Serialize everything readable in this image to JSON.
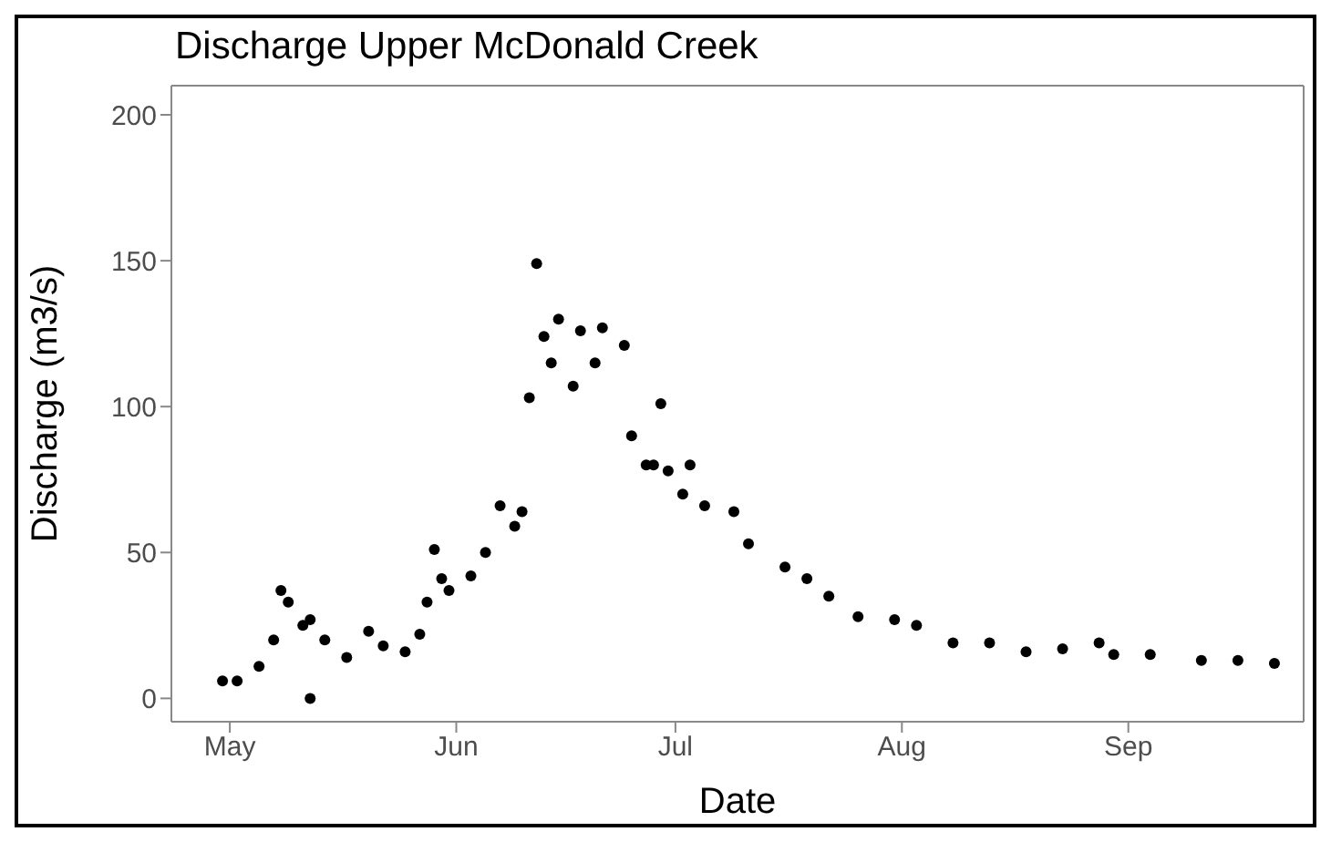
{
  "chart_data": {
    "type": "scatter",
    "title": "Discharge Upper McDonald Creek",
    "xlabel": "Date",
    "ylabel": "Discharge (m3/s)",
    "x": [
      "--04-30",
      "--05-02",
      "--05-05",
      "--05-07",
      "--05-08",
      "--05-09",
      "--05-11",
      "--05-12",
      "--05-12",
      "--05-14",
      "--05-17",
      "--05-20",
      "--05-22",
      "--05-25",
      "--05-27",
      "--05-28",
      "--05-29",
      "--05-30",
      "--05-31",
      "--06-03",
      "--06-05",
      "--06-07",
      "--06-09",
      "--06-10",
      "--06-11",
      "--06-12",
      "--06-13",
      "--06-14",
      "--06-15",
      "--06-17",
      "--06-18",
      "--06-20",
      "--06-21",
      "--06-24",
      "--06-25",
      "--06-27",
      "--06-28",
      "--06-29",
      "--06-30",
      "--07-02",
      "--07-03",
      "--07-05",
      "--07-09",
      "--07-11",
      "--07-16",
      "--07-19",
      "--07-22",
      "--07-26",
      "--07-31",
      "--08-03",
      "--08-08",
      "--08-13",
      "--08-18",
      "--08-23",
      "--08-28",
      "--08-30",
      "--09-04",
      "--09-11",
      "--09-16",
      "--09-21"
    ],
    "values": [
      6,
      6,
      11,
      20,
      37,
      33,
      25,
      27,
      0,
      20,
      14,
      23,
      18,
      16,
      22,
      33,
      51,
      41,
      37,
      42,
      50,
      66,
      59,
      64,
      103,
      149,
      124,
      115,
      130,
      107,
      126,
      115,
      127,
      121,
      90,
      80,
      80,
      101,
      78,
      70,
      80,
      66,
      64,
      53,
      45,
      41,
      35,
      28,
      27,
      25,
      19,
      19,
      16,
      17,
      19,
      15,
      15,
      13,
      13,
      12
    ],
    "color": "#000000",
    "marker": "circle",
    "xlim": [
      "--04-23",
      "--09-25"
    ],
    "xticks": [
      {
        "value": "--05-01",
        "label": "May"
      },
      {
        "value": "--06-01",
        "label": "Jun"
      },
      {
        "value": "--07-01",
        "label": "Jul"
      },
      {
        "value": "--08-01",
        "label": "Aug"
      },
      {
        "value": "--09-01",
        "label": "Sep"
      }
    ],
    "ylim": [
      -8,
      210
    ],
    "yticks": [
      0,
      50,
      100,
      150,
      200
    ]
  }
}
